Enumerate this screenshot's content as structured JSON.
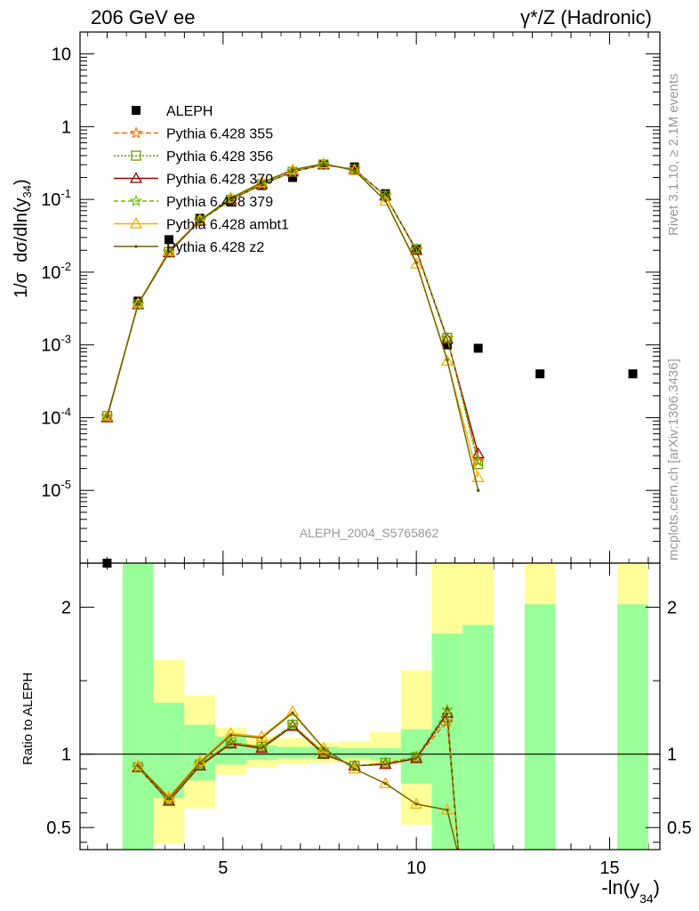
{
  "header": {
    "left_title": "206 GeV ee",
    "right_title": "γ*/Z (Hadronic)"
  },
  "side_labels": {
    "rivet": "Rivet 3.1.10, ≥ 2.1M events",
    "source": "mcplots.cern.ch [arXiv:1306.3436]"
  },
  "chart_data": [
    {
      "type": "line",
      "panel": "main",
      "ylabel": "1/σ dσ/dln(y34)",
      "xlabel": "",
      "yscale": "log",
      "ylim": [
        1e-06,
        20
      ],
      "xlim": [
        1.3,
        16.3
      ],
      "yticks": [
        {
          "v": 10,
          "label": "10"
        },
        {
          "v": 1,
          "label": "1"
        },
        {
          "v": 0.1,
          "label": "10-1"
        },
        {
          "v": 0.01,
          "label": "10-2"
        },
        {
          "v": 0.001,
          "label": "10-3"
        },
        {
          "v": 0.0001,
          "label": "10-4"
        },
        {
          "v": 1e-05,
          "label": "10-5"
        }
      ],
      "watermark": "ALEPH_2004_S5765862",
      "legend_position": "top-left",
      "series": [
        {
          "name": "ALEPH",
          "color": "#000000",
          "marker": "square",
          "x": [
            2.0,
            2.8,
            3.6,
            4.4,
            5.2,
            6.0,
            6.8,
            7.6,
            8.4,
            9.2,
            10.0,
            10.8,
            11.6,
            13.2,
            15.6
          ],
          "y": [
            1e-06,
            0.004,
            0.028,
            0.055,
            0.092,
            0.155,
            0.2,
            0.3,
            0.28,
            0.12,
            0.021,
            0.001,
            0.0009,
            0.0004,
            0.0004
          ]
        },
        {
          "name": "Pythia 6.428 355",
          "color": "#ff6600",
          "marker": "star",
          "dash": "6,3",
          "x": [
            2.0,
            2.8,
            3.6,
            4.4,
            5.2,
            6.0,
            6.8,
            7.6,
            8.4,
            9.2,
            10.0,
            10.8,
            11.6
          ],
          "y": [
            0.000105,
            0.0036,
            0.019,
            0.051,
            0.099,
            0.162,
            0.24,
            0.302,
            0.257,
            0.112,
            0.02,
            0.00122,
            2.6e-05
          ]
        },
        {
          "name": "Pythia 6.428 356",
          "color": "#669900",
          "marker": "square-open",
          "dash": "2,2",
          "x": [
            2.0,
            2.8,
            3.6,
            4.4,
            5.2,
            6.0,
            6.8,
            7.6,
            8.4,
            9.2,
            10.0,
            10.8,
            11.6
          ],
          "y": [
            0.000105,
            0.0036,
            0.019,
            0.051,
            0.099,
            0.162,
            0.24,
            0.302,
            0.257,
            0.112,
            0.0205,
            0.00125,
            2.3e-05
          ]
        },
        {
          "name": "Pythia 6.428 370",
          "color": "#990000",
          "marker": "triangle-open",
          "dash": "",
          "x": [
            2.0,
            2.8,
            3.6,
            4.4,
            5.2,
            6.0,
            6.8,
            7.6,
            8.4,
            9.2,
            10.0,
            10.8,
            11.6
          ],
          "y": [
            0.0001,
            0.0036,
            0.0185,
            0.051,
            0.0985,
            0.16,
            0.24,
            0.3,
            0.258,
            0.112,
            0.02,
            0.0012,
            3.2e-05
          ]
        },
        {
          "name": "Pythia 6.428 379",
          "color": "#66bb00",
          "marker": "star",
          "dash": "5,3",
          "x": [
            2.0,
            2.8,
            3.6,
            4.4,
            5.2,
            6.0,
            6.8,
            7.6,
            8.4,
            9.2,
            10.0,
            10.8,
            11.6
          ],
          "y": [
            0.000104,
            0.0036,
            0.0188,
            0.051,
            0.099,
            0.162,
            0.24,
            0.302,
            0.257,
            0.112,
            0.0205,
            0.00125,
            2.5e-05
          ]
        },
        {
          "name": "Pythia 6.428 ambt1",
          "color": "#ffaa00",
          "marker": "triangle-open",
          "dash": "",
          "x": [
            2.0,
            2.8,
            3.6,
            4.4,
            5.2,
            6.0,
            6.8,
            7.6,
            8.4,
            9.2,
            10.0,
            10.8,
            11.6
          ],
          "y": [
            0.000105,
            0.0037,
            0.0195,
            0.052,
            0.105,
            0.172,
            0.255,
            0.31,
            0.25,
            0.095,
            0.013,
            0.0006,
            1.5e-05
          ]
        },
        {
          "name": "Pythia 6.428 z2",
          "color": "#666600",
          "marker": "dot",
          "dash": "",
          "x": [
            2.0,
            2.8,
            3.6,
            4.4,
            5.2,
            6.0,
            6.8,
            7.6,
            8.4,
            9.2,
            10.0,
            10.8,
            11.6
          ],
          "y": [
            0.000103,
            0.0036,
            0.019,
            0.0515,
            0.104,
            0.17,
            0.255,
            0.31,
            0.25,
            0.096,
            0.0135,
            0.00062,
            1e-05
          ]
        }
      ]
    },
    {
      "type": "line",
      "panel": "ratio",
      "ylabel": "Ratio to ALEPH",
      "xlabel": "-ln(y34)",
      "yscale": "linear",
      "ylim": [
        0.35,
        2.3
      ],
      "xlim": [
        1.3,
        16.3
      ],
      "xticks": [
        5,
        10,
        15
      ],
      "yticks": [
        0.5,
        1,
        2
      ],
      "reference_line": 1,
      "uncertainty_bands": {
        "x_edges": [
          [
            2.4,
            3.2
          ],
          [
            3.2,
            4.0
          ],
          [
            4.0,
            4.8
          ],
          [
            4.8,
            5.6
          ],
          [
            5.6,
            6.4
          ],
          [
            6.4,
            7.2
          ],
          [
            7.2,
            8.0
          ],
          [
            8.0,
            8.8
          ],
          [
            8.8,
            9.6
          ],
          [
            9.6,
            10.4
          ],
          [
            10.4,
            11.2
          ],
          [
            11.2,
            12.0
          ],
          [
            12.8,
            13.6
          ],
          [
            15.2,
            16.0
          ]
        ],
        "inner": [
          [
            0.3,
            2.4
          ],
          [
            0.7,
            1.35
          ],
          [
            0.82,
            1.2
          ],
          [
            0.93,
            1.12
          ],
          [
            0.96,
            1.06
          ],
          [
            0.97,
            1.05
          ],
          [
            0.97,
            1.05
          ],
          [
            0.97,
            1.04
          ],
          [
            0.96,
            1.04
          ],
          [
            0.8,
            1.17
          ],
          [
            0.3,
            1.82
          ],
          [
            0.3,
            1.88
          ],
          [
            0.3,
            2.02
          ],
          [
            0.3,
            2.02
          ]
        ],
        "outer": [
          [
            0.3,
            2.4
          ],
          [
            0.39,
            1.64
          ],
          [
            0.63,
            1.4
          ],
          [
            0.86,
            1.18
          ],
          [
            0.91,
            1.12
          ],
          [
            0.93,
            1.11
          ],
          [
            0.94,
            1.08
          ],
          [
            0.95,
            1.09
          ],
          [
            0.93,
            1.15
          ],
          [
            0.52,
            1.57
          ],
          [
            0.3,
            2.4
          ],
          [
            0.3,
            2.4
          ],
          [
            0.3,
            2.4
          ],
          [
            0.3,
            2.4
          ]
        ]
      },
      "series": [
        {
          "name": "Pythia 6.428 355",
          "color": "#ff6600",
          "dash": "6,3",
          "x": [
            2.8,
            3.6,
            4.4,
            5.2,
            6.0,
            6.8,
            7.6,
            8.4,
            9.2,
            10.0,
            10.8,
            11.1
          ],
          "y": [
            0.91,
            0.69,
            0.93,
            1.08,
            1.05,
            1.2,
            1.01,
            0.92,
            0.94,
            0.98,
            1.22,
            0.3
          ]
        },
        {
          "name": "Pythia 6.428 356",
          "color": "#669900",
          "dash": "2,2",
          "x": [
            2.8,
            3.6,
            4.4,
            5.2,
            6.0,
            6.8,
            7.6,
            8.4,
            9.2,
            10.0,
            10.8,
            11.1
          ],
          "y": [
            0.91,
            0.69,
            0.93,
            1.08,
            1.05,
            1.2,
            1.01,
            0.92,
            0.94,
            0.98,
            1.25,
            0.3
          ]
        },
        {
          "name": "Pythia 6.428 370",
          "color": "#990000",
          "dash": "",
          "x": [
            2.8,
            3.6,
            4.4,
            5.2,
            6.0,
            6.8,
            7.6,
            8.4,
            9.2,
            10.0,
            10.8,
            11.1
          ],
          "y": [
            0.91,
            0.68,
            0.92,
            1.07,
            1.04,
            1.19,
            1.0,
            0.92,
            0.93,
            0.97,
            1.28,
            0.3
          ]
        },
        {
          "name": "Pythia 6.428 379",
          "color": "#66bb00",
          "dash": "5,3",
          "x": [
            2.8,
            3.6,
            4.4,
            5.2,
            6.0,
            6.8,
            7.6,
            8.4,
            9.2,
            10.0,
            10.8,
            11.1
          ],
          "y": [
            0.91,
            0.69,
            0.93,
            1.08,
            1.05,
            1.2,
            1.01,
            0.92,
            0.94,
            0.98,
            1.3,
            0.3
          ]
        },
        {
          "name": "Pythia 6.428 ambt1",
          "color": "#ffaa00",
          "dash": "",
          "x": [
            2.8,
            3.6,
            4.4,
            5.2,
            6.0,
            6.8,
            7.6,
            8.4,
            9.2,
            10.0,
            10.8,
            11.1
          ],
          "y": [
            0.92,
            0.71,
            0.95,
            1.14,
            1.12,
            1.29,
            1.04,
            0.9,
            0.8,
            0.66,
            0.62,
            0.3
          ]
        },
        {
          "name": "Pythia 6.428 z2",
          "color": "#666600",
          "dash": "",
          "x": [
            2.8,
            3.6,
            4.4,
            5.2,
            6.0,
            6.8,
            7.6,
            8.4,
            9.2,
            10.0,
            10.8,
            11.1
          ],
          "y": [
            0.92,
            0.7,
            0.94,
            1.13,
            1.11,
            1.28,
            1.04,
            0.9,
            0.8,
            0.66,
            0.62,
            0.3
          ]
        }
      ]
    }
  ]
}
